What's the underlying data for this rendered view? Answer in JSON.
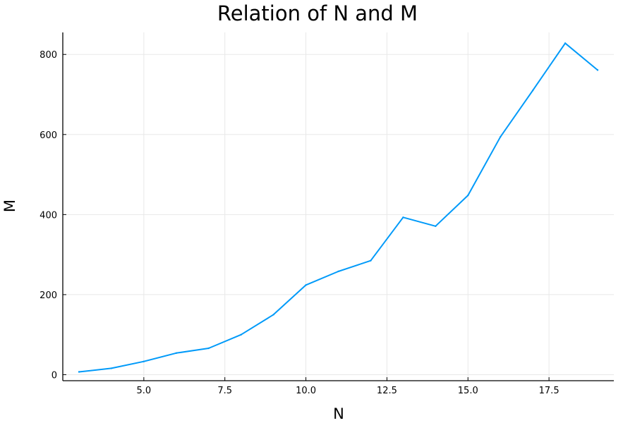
{
  "chart_data": {
    "type": "line",
    "title": "Relation of N and M",
    "xlabel": "N",
    "ylabel": "M",
    "xlim": [
      2.5,
      19.5
    ],
    "ylim": [
      -15,
      855
    ],
    "x_ticks": [
      5.0,
      7.5,
      10.0,
      12.5,
      15.0,
      17.5
    ],
    "x_tick_labels": [
      "5.0",
      "7.5",
      "10.0",
      "12.5",
      "15.0",
      "17.5"
    ],
    "y_ticks": [
      0,
      200,
      400,
      600,
      800
    ],
    "y_tick_labels": [
      "0",
      "200",
      "400",
      "600",
      "800"
    ],
    "grid": true,
    "legend": "none",
    "series": [
      {
        "color": "#009af9",
        "x": [
          3,
          4,
          5,
          6,
          7,
          8,
          9,
          10,
          11,
          12,
          13,
          14,
          15,
          16,
          17,
          18,
          19
        ],
        "y": [
          7,
          16,
          33,
          54,
          66,
          100,
          150,
          224,
          258,
          285,
          393,
          371,
          448,
          594,
          710,
          828,
          761
        ]
      }
    ]
  }
}
